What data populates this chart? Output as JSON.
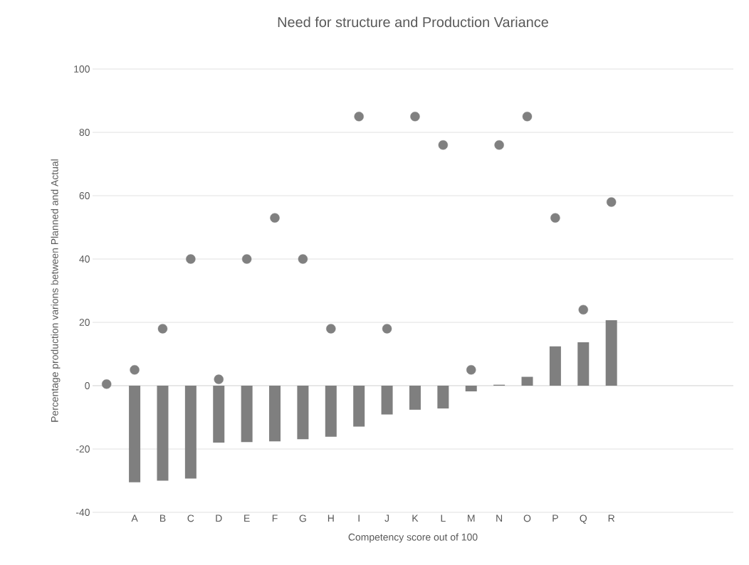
{
  "chart_data": {
    "type": "bar",
    "title": "Need for structure and Production Variance",
    "xlabel": "Competency score out of 100",
    "ylabel": "Percentage production varions between Planned and Actual",
    "categories": [
      null,
      "A",
      "B",
      "C",
      "D",
      "E",
      "F",
      "G",
      "H",
      "I",
      "J",
      "K",
      "L",
      "M",
      "N",
      "O",
      "P",
      "Q",
      "R"
    ],
    "series": [
      {
        "color": "#7f7f7f",
        "values": [
          null,
          -30.5,
          -30,
          -29.3,
          -18,
          -17.8,
          -17.6,
          -16.9,
          -16.1,
          -12.9,
          -9.1,
          -7.6,
          -7.2,
          -1.8,
          0.3,
          2.8,
          12.4,
          13.7,
          20.7
        ]
      },
      {
        "type": "scatter",
        "color": "#808080",
        "values": [
          0.5,
          5,
          18,
          40,
          2,
          40,
          53,
          40,
          18,
          85,
          18,
          85,
          76,
          5,
          76,
          85,
          53,
          24,
          58
        ]
      }
    ],
    "ylim": [
      -40,
      100
    ],
    "yticks": [
      -40,
      -20,
      0,
      20,
      40,
      60,
      80,
      100
    ],
    "grid": "y"
  }
}
